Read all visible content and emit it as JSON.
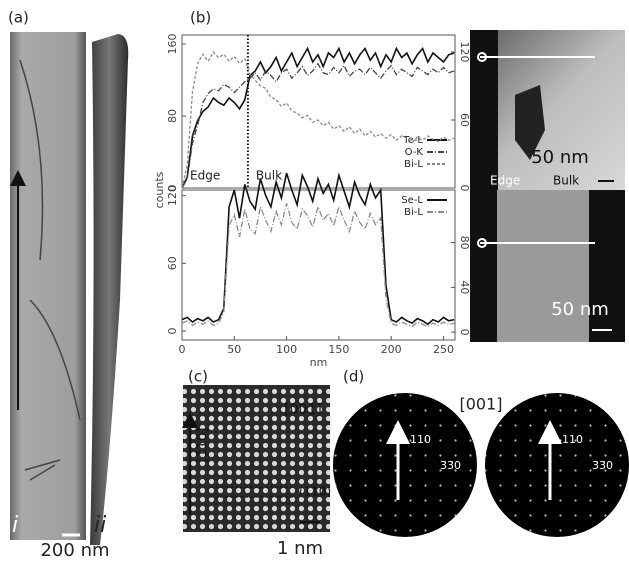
{
  "panel_labels": [
    "(a)",
    "(b)",
    "(c)",
    "(d)"
  ],
  "panel_a": {
    "labels": [
      "i",
      "ii"
    ],
    "scale": "200 nm"
  },
  "panel_b_images": {
    "top_scale": "50 nm",
    "edge": "Edge",
    "bulk": "Bulk",
    "bottom_scale": "50 nm"
  },
  "panel_c": {
    "zone": "[001]",
    "direction": "[1̄10]",
    "plane": "(110)",
    "scale": "1 nm"
  },
  "panel_d": {
    "zone": "[001]",
    "spots": [
      "110",
      "3̄3̄0"
    ]
  },
  "chart_data": [
    {
      "type": "line",
      "x": [
        0,
        5,
        10,
        15,
        20,
        25,
        30,
        35,
        40,
        45,
        50,
        55,
        60,
        65,
        70,
        75,
        80,
        85,
        90,
        95,
        100,
        105,
        110,
        115,
        120,
        125,
        130,
        135,
        140,
        145,
        150,
        155,
        160,
        165,
        170,
        175,
        180,
        185,
        190,
        195,
        200,
        205,
        210,
        215,
        220,
        225,
        230,
        235,
        240,
        245,
        250,
        255,
        260
      ],
      "xlim": [
        0,
        261
      ],
      "ylim": [
        0,
        170
      ],
      "yticks": [
        0,
        80,
        160
      ],
      "y2lim": [
        0,
        135
      ],
      "y2ticks": [
        0,
        60,
        120
      ],
      "divider": 63,
      "annotations": [
        "Edge",
        "Bulk"
      ],
      "legend": "lower right",
      "series": [
        {
          "name": "Te-L",
          "color": "#111111",
          "values": [
            0,
            12,
            58,
            75,
            85,
            90,
            100,
            95,
            92,
            100,
            95,
            88,
            98,
            125,
            130,
            140,
            128,
            135,
            145,
            130,
            140,
            150,
            135,
            145,
            155,
            140,
            148,
            135,
            150,
            145,
            155,
            140,
            150,
            138,
            148,
            155,
            142,
            150,
            135,
            148,
            140,
            155,
            145,
            150,
            138,
            148,
            155,
            140,
            150,
            145,
            140,
            148,
            150
          ]
        },
        {
          "name": "O-K",
          "color": "#444444",
          "values": [
            0,
            10,
            50,
            70,
            95,
            105,
            110,
            108,
            115,
            112,
            106,
            112,
            118,
            122,
            128,
            120,
            130,
            125,
            118,
            128,
            132,
            122,
            128,
            135,
            125,
            130,
            138,
            128,
            126,
            134,
            128,
            136,
            124,
            130,
            132,
            126,
            134,
            128,
            122,
            130,
            136,
            126,
            132,
            128,
            124,
            134,
            130,
            126,
            132,
            128,
            134,
            128,
            130
          ]
        },
        {
          "name": "Bi-L",
          "color": "#8a8a8a",
          "axis": "y2",
          "values": [
            0,
            20,
            85,
            110,
            118,
            112,
            120,
            115,
            118,
            112,
            116,
            110,
            114,
            100,
            95,
            90,
            88,
            80,
            78,
            72,
            75,
            68,
            66,
            62,
            64,
            58,
            60,
            55,
            58,
            52,
            55,
            50,
            54,
            48,
            52,
            46,
            50,
            45,
            48,
            44,
            47,
            42,
            46,
            44,
            40,
            45,
            42,
            46,
            43,
            41,
            45,
            42,
            44
          ]
        }
      ]
    },
    {
      "type": "line",
      "x": [
        0,
        5,
        10,
        15,
        20,
        25,
        30,
        35,
        40,
        45,
        50,
        55,
        60,
        65,
        70,
        75,
        80,
        85,
        90,
        95,
        100,
        105,
        110,
        115,
        120,
        125,
        130,
        135,
        140,
        145,
        150,
        155,
        160,
        165,
        170,
        175,
        180,
        185,
        190,
        195,
        200,
        205,
        210,
        215,
        220,
        225,
        230,
        235,
        240,
        245,
        250,
        255,
        260
      ],
      "xlim": [
        0,
        261
      ],
      "xticks": [
        0,
        50,
        100,
        150,
        200,
        250
      ],
      "xlabel": "nm",
      "ylabel": "counts",
      "ylim": [
        -8,
        125
      ],
      "yticks": [
        0,
        60,
        120
      ],
      "y2lim": [
        -7,
        127
      ],
      "y2ticks": [
        0,
        40,
        80
      ],
      "legend": "upper right",
      "series": [
        {
          "name": "Se-L",
          "color": "#111111",
          "values": [
            10,
            12,
            8,
            11,
            9,
            12,
            8,
            10,
            20,
            110,
            125,
            100,
            130,
            115,
            108,
            135,
            120,
            110,
            132,
            118,
            140,
            125,
            112,
            138,
            128,
            115,
            135,
            122,
            130,
            116,
            138,
            124,
            110,
            132,
            120,
            112,
            130,
            118,
            125,
            40,
            10,
            8,
            12,
            9,
            7,
            11,
            9,
            6,
            10,
            8,
            12,
            9,
            10
          ]
        },
        {
          "name": "Bi-L",
          "color": "#8a8a8a",
          "axis": "y2",
          "values": [
            8,
            10,
            6,
            9,
            7,
            10,
            6,
            8,
            18,
            95,
            105,
            85,
            110,
            92,
            88,
            112,
            100,
            90,
            108,
            96,
            115,
            98,
            92,
            110,
            104,
            94,
            112,
            100,
            106,
            95,
            112,
            100,
            90,
            108,
            98,
            92,
            106,
            96,
            102,
            30,
            8,
            6,
            9,
            7,
            5,
            9,
            7,
            5,
            8,
            6,
            9,
            7,
            8
          ]
        }
      ]
    }
  ]
}
